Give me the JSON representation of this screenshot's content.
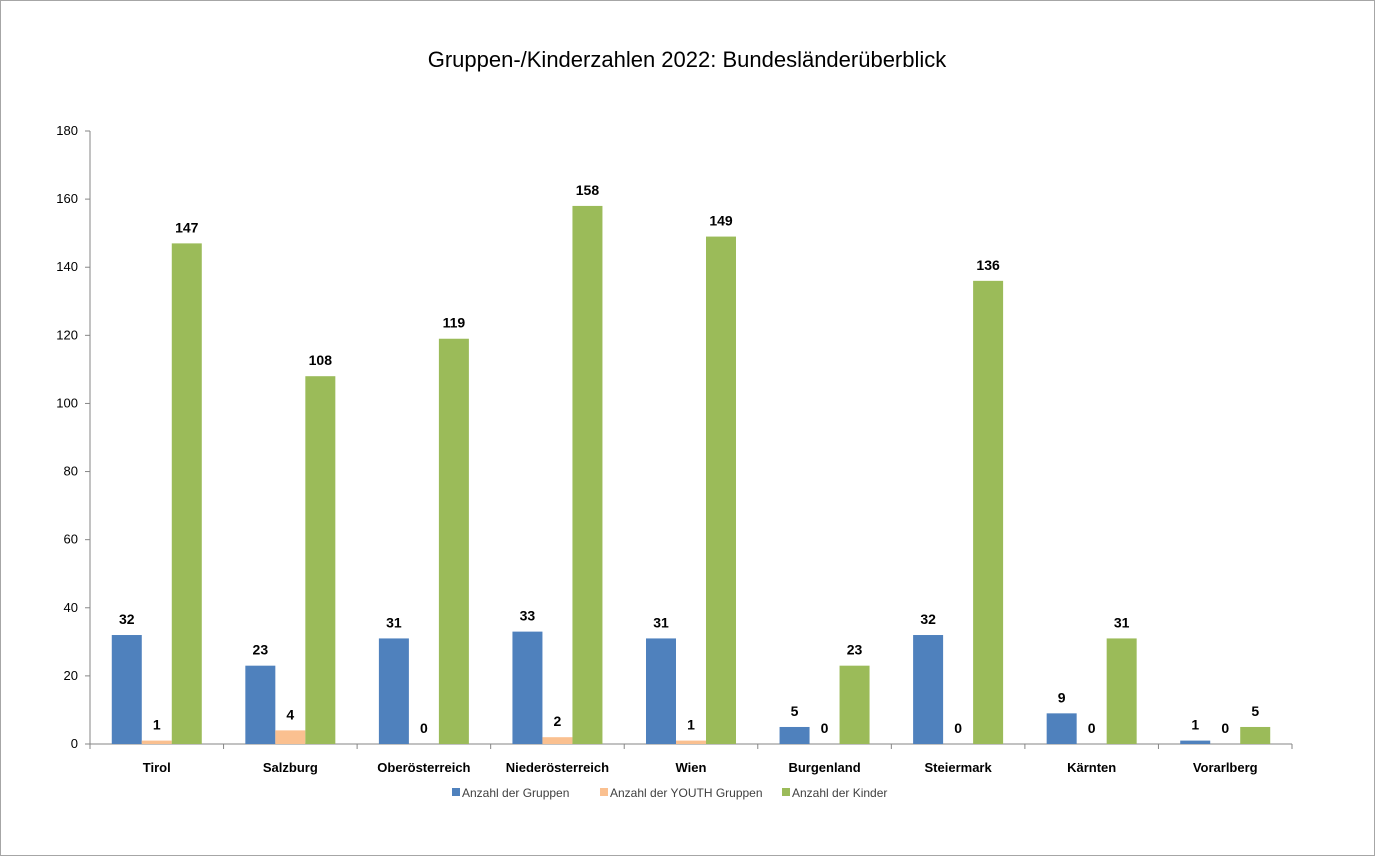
{
  "chart_data": {
    "type": "bar",
    "title": "Gruppen-/Kinderzahlen 2022: Bundesländerüberblick",
    "xlabel": "",
    "ylabel": "",
    "ylim": [
      0,
      180
    ],
    "yticks": [
      0,
      20,
      40,
      60,
      80,
      100,
      120,
      140,
      160,
      180
    ],
    "grid": false,
    "legend_position": "bottom",
    "categories": [
      "Tirol",
      "Salzburg",
      "Oberösterreich",
      "Niederösterreich",
      "Wien",
      "Burgenland",
      "Steiermark",
      "Kärnten",
      "Vorarlberg"
    ],
    "series": [
      {
        "name": "Anzahl der Gruppen",
        "color": "#4f81bd",
        "values": [
          32,
          23,
          31,
          33,
          31,
          5,
          32,
          9,
          1
        ]
      },
      {
        "name": "Anzahl der YOUTH Gruppen",
        "color": "#fac090",
        "values": [
          1,
          4,
          0,
          2,
          1,
          0,
          0,
          0,
          0
        ]
      },
      {
        "name": "Anzahl der Kinder",
        "color": "#9bbb59",
        "values": [
          147,
          108,
          119,
          158,
          149,
          23,
          136,
          31,
          5
        ]
      }
    ]
  }
}
